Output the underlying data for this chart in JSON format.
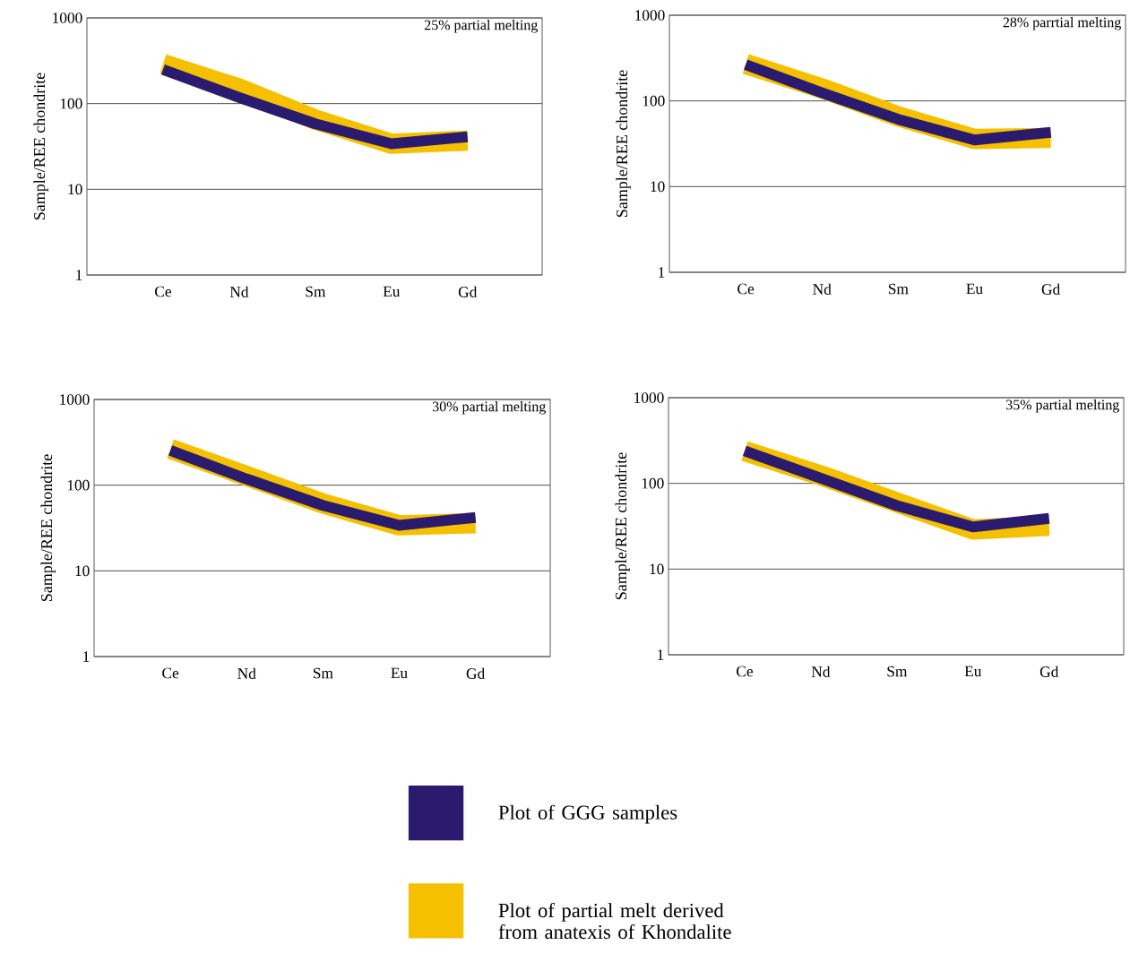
{
  "chart_data": [
    {
      "type": "line",
      "title": "25% partial melting",
      "ylabel": "Sample/REE chondrite",
      "categories": [
        "Ce",
        "Nd",
        "Sm",
        "Eu",
        "Gd"
      ],
      "ylim": [
        1,
        1000
      ],
      "yticks": [
        1,
        10,
        100,
        1000
      ],
      "log": true,
      "grid": "y",
      "series": [
        {
          "color": "#2a1b6e",
          "values": [
            250,
            118,
            58,
            34,
            41
          ]
        },
        {
          "color": "#f5c000",
          "values": [
            290,
            150,
            65,
            34,
            37
          ]
        }
      ]
    },
    {
      "type": "line",
      "title": "28% parrtial melting",
      "ylabel": "Sample/REE chondrite",
      "categories": [
        "Ce",
        "Nd",
        "Sm",
        "Eu",
        "Gd"
      ],
      "ylim": [
        1,
        1000
      ],
      "yticks": [
        1,
        10,
        100,
        1000
      ],
      "log": true,
      "grid": "y",
      "series": [
        {
          "color": "#2a1b6e",
          "values": [
            265,
            124,
            61,
            35,
            43
          ]
        },
        {
          "color": "#f5c000",
          "values": [
            270,
            140,
            66,
            36,
            37
          ]
        }
      ]
    },
    {
      "type": "line",
      "title": "30% partial melting",
      "ylabel": "Sample/REE chondrite",
      "categories": [
        "Ce",
        "Nd",
        "Sm",
        "Eu",
        "Gd"
      ],
      "ylim": [
        1,
        1000
      ],
      "yticks": [
        1,
        10,
        100,
        1000
      ],
      "log": true,
      "grid": "y",
      "series": [
        {
          "color": "#2a1b6e",
          "values": [
            255,
            118,
            58,
            34,
            42
          ]
        },
        {
          "color": "#f5c000",
          "values": [
            265,
            128,
            61,
            34,
            36
          ]
        }
      ]
    },
    {
      "type": "line",
      "title": "35% partial melting",
      "ylabel": "Sample/REE chondrite",
      "categories": [
        "Ce",
        "Nd",
        "Sm",
        "Eu",
        "Gd"
      ],
      "ylim": [
        1,
        1000
      ],
      "yticks": [
        1,
        10,
        100,
        1000
      ],
      "log": true,
      "grid": "y",
      "legend": "bottom",
      "series": [
        {
          "name": "Plot of GGG samples",
          "color": "#2a1b6e",
          "values": [
            240,
            115,
            55,
            31,
            39
          ]
        },
        {
          "name": "Plot of partial melt derived from anatexis of Khondalite",
          "color": "#f5c000",
          "values": [
            238,
            124,
            60,
            29,
            32
          ]
        }
      ]
    }
  ]
}
